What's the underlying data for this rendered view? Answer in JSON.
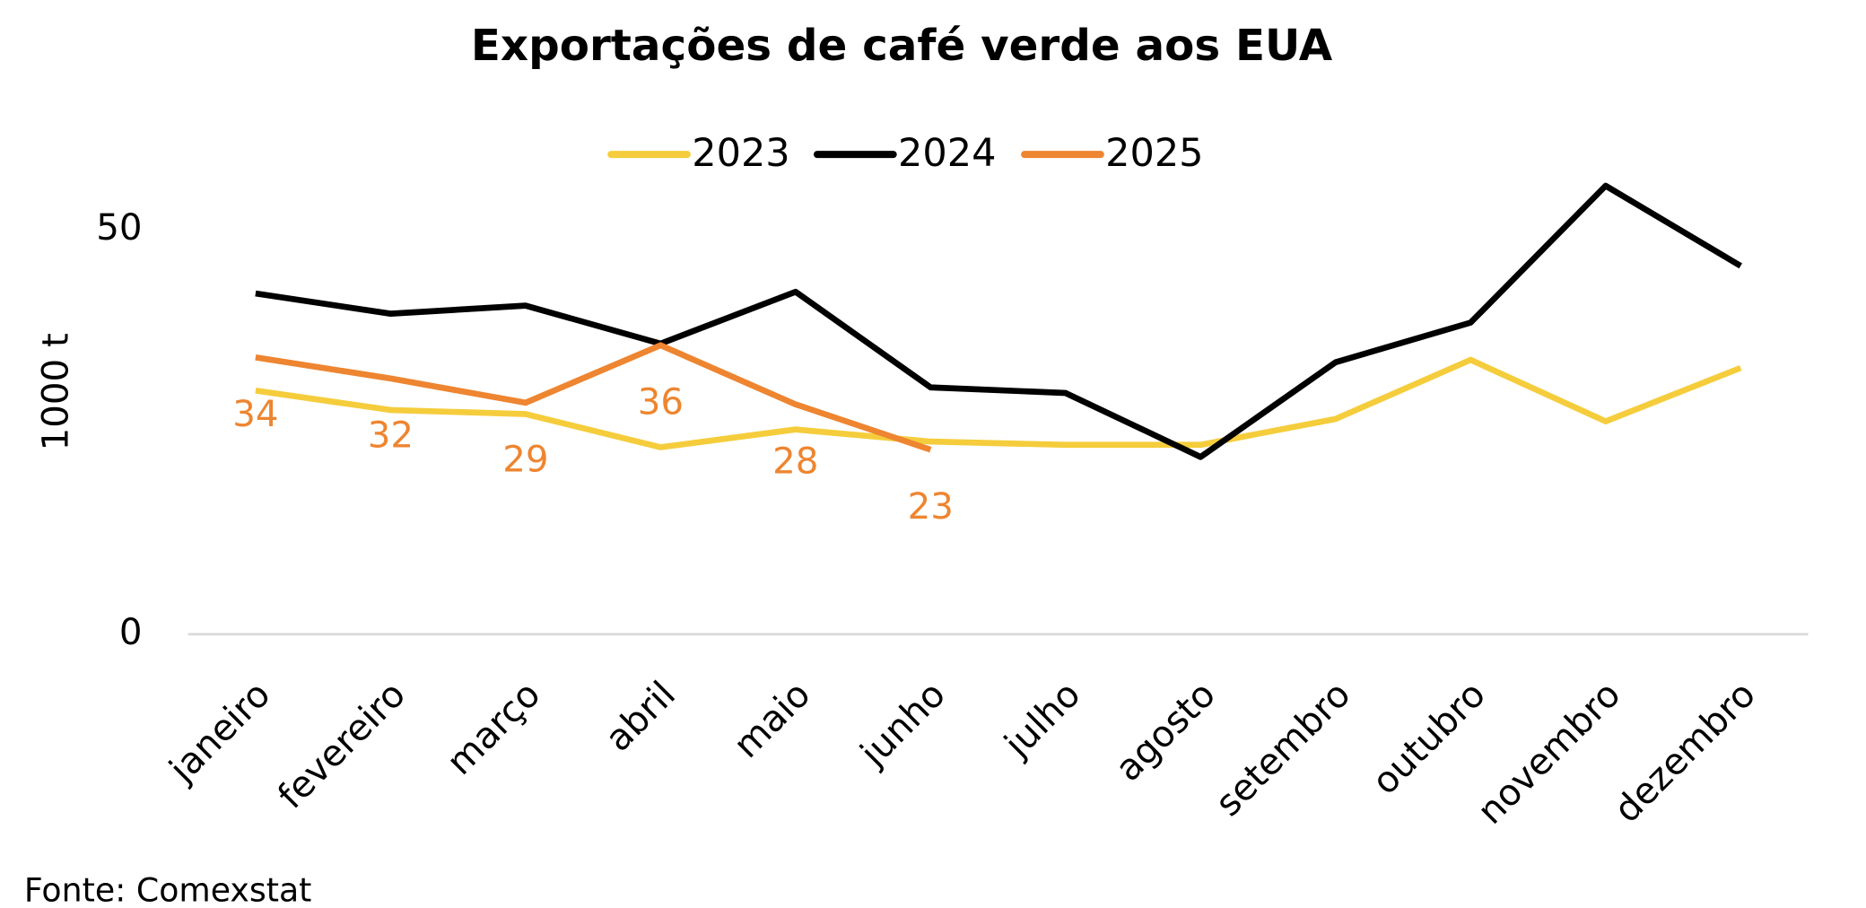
{
  "chart_data": {
    "type": "line",
    "title": "Exportações de café verde aos EUA",
    "ylabel": "1000 t",
    "source": "Fonte: Comexstat",
    "categories": [
      "janeiro",
      "fevereiro",
      "março",
      "abril",
      "maio",
      "junho",
      "julho",
      "agosto",
      "setembro",
      "outubro",
      "novembro",
      "dezembro"
    ],
    "series": [
      {
        "name": "2023",
        "color": "#f5cd3c",
        "values": [
          30.1,
          27.7,
          27.2,
          23.1,
          25.3,
          23.8,
          23.4,
          23.4,
          26.6,
          33.9,
          26.3,
          32.9
        ]
      },
      {
        "name": "2024",
        "color": "#000000",
        "values": [
          42.1,
          39.6,
          40.6,
          35.9,
          42.3,
          30.5,
          29.8,
          21.9,
          33.6,
          38.5,
          55.4,
          45.5
        ]
      },
      {
        "name": "2025",
        "color": "#ee8530",
        "values": [
          34.2,
          31.6,
          28.6,
          35.7,
          28.4,
          22.8,
          null,
          null,
          null,
          null,
          null,
          null
        ],
        "value_labels": [
          "34",
          "32",
          "29",
          "36",
          "28",
          "23",
          null,
          null,
          null,
          null,
          null,
          null
        ]
      }
    ],
    "ylim": [
      0,
      56
    ],
    "yticks": [
      0,
      50
    ],
    "legend": "top"
  }
}
